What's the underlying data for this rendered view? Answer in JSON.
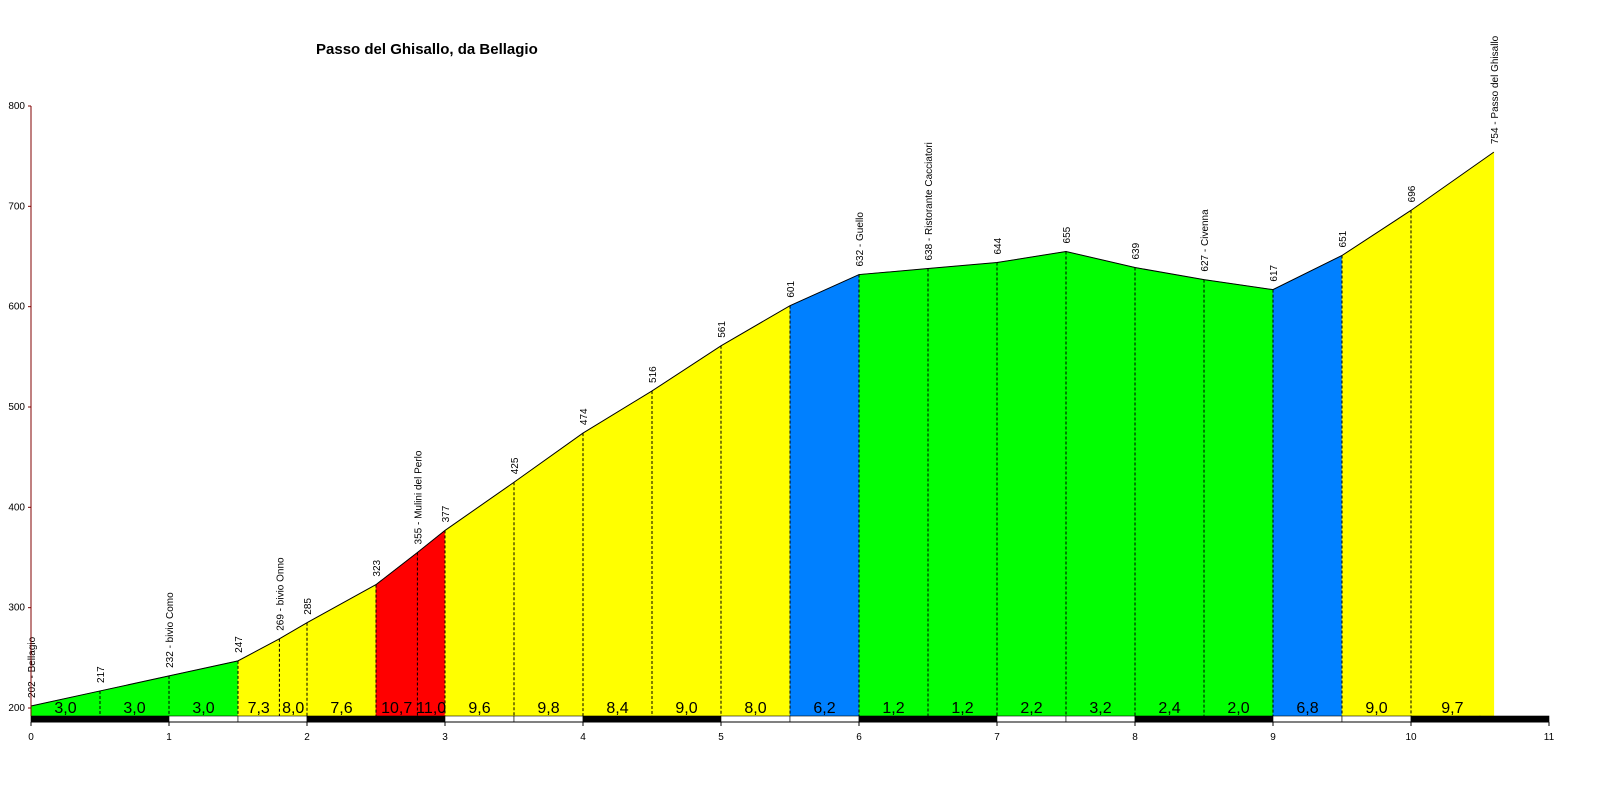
{
  "chart_data": {
    "type": "area",
    "title": "Passo del Ghisallo, da Bellagio",
    "xlabel": "",
    "ylabel": "",
    "xlim": [
      0,
      11
    ],
    "ylim": [
      200,
      800
    ],
    "x_ticks": [
      "0",
      "1",
      "2",
      "3",
      "4",
      "5",
      "6",
      "7",
      "8",
      "9",
      "10",
      "11"
    ],
    "y_ticks": [
      "200",
      "300",
      "400",
      "500",
      "600",
      "700",
      "800"
    ],
    "points": [
      {
        "x": 0.0,
        "y": 202,
        "label": "202 - Bellagio"
      },
      {
        "x": 0.5,
        "y": 217,
        "label": "217"
      },
      {
        "x": 1.0,
        "y": 232,
        "label": "232 - bivio Como"
      },
      {
        "x": 1.5,
        "y": 247,
        "label": "247"
      },
      {
        "x": 1.8,
        "y": 269,
        "label": "269 - bivio Onno"
      },
      {
        "x": 2.0,
        "y": 285,
        "label": "285"
      },
      {
        "x": 2.5,
        "y": 323,
        "label": "323"
      },
      {
        "x": 2.8,
        "y": 355,
        "label": "355 - Mulini del Perlo"
      },
      {
        "x": 3.0,
        "y": 377,
        "label": "377"
      },
      {
        "x": 3.5,
        "y": 425,
        "label": "425"
      },
      {
        "x": 4.0,
        "y": 474,
        "label": "474"
      },
      {
        "x": 4.5,
        "y": 516,
        "label": "516"
      },
      {
        "x": 5.0,
        "y": 561,
        "label": "561"
      },
      {
        "x": 5.5,
        "y": 601,
        "label": "601"
      },
      {
        "x": 6.0,
        "y": 632,
        "label": "632 - Guello"
      },
      {
        "x": 6.5,
        "y": 638,
        "label": "638 - Ristorante Cacciatori"
      },
      {
        "x": 7.0,
        "y": 644,
        "label": "644"
      },
      {
        "x": 7.5,
        "y": 655,
        "label": "655"
      },
      {
        "x": 8.0,
        "y": 639,
        "label": "639"
      },
      {
        "x": 8.5,
        "y": 627,
        "label": "627 - Civenna"
      },
      {
        "x": 9.0,
        "y": 617,
        "label": "617"
      },
      {
        "x": 9.5,
        "y": 651,
        "label": "651"
      },
      {
        "x": 10.0,
        "y": 696,
        "label": "696"
      },
      {
        "x": 10.6,
        "y": 754,
        "label": "754 - Passo del Ghisallo"
      }
    ],
    "segments": [
      {
        "grade": "3,0",
        "color": "#00ff00"
      },
      {
        "grade": "3,0",
        "color": "#00ff00"
      },
      {
        "grade": "3,0",
        "color": "#00ff00"
      },
      {
        "grade": "7,3",
        "color": "#ffff00"
      },
      {
        "grade": "8,0",
        "color": "#ffff00"
      },
      {
        "grade": "7,6",
        "color": "#ffff00"
      },
      {
        "grade": "10,7",
        "color": "#ff0000"
      },
      {
        "grade": "11,0",
        "color": "#ff0000"
      },
      {
        "grade": "9,6",
        "color": "#ffff00"
      },
      {
        "grade": "9,8",
        "color": "#ffff00"
      },
      {
        "grade": "8,4",
        "color": "#ffff00"
      },
      {
        "grade": "9,0",
        "color": "#ffff00"
      },
      {
        "grade": "8,0",
        "color": "#ffff00"
      },
      {
        "grade": "6,2",
        "color": "#0080ff"
      },
      {
        "grade": "1,2",
        "color": "#00ff00"
      },
      {
        "grade": "1,2",
        "color": "#00ff00"
      },
      {
        "grade": "2,2",
        "color": "#00ff00"
      },
      {
        "grade": "3,2",
        "color": "#00ff00"
      },
      {
        "grade": "2,4",
        "color": "#00ff00"
      },
      {
        "grade": "2,0",
        "color": "#00ff00"
      },
      {
        "grade": "6,8",
        "color": "#0080ff"
      },
      {
        "grade": "9,0",
        "color": "#ffff00"
      },
      {
        "grade": "9,7",
        "color": "#ffff00"
      }
    ],
    "axis_color": "#800000"
  }
}
